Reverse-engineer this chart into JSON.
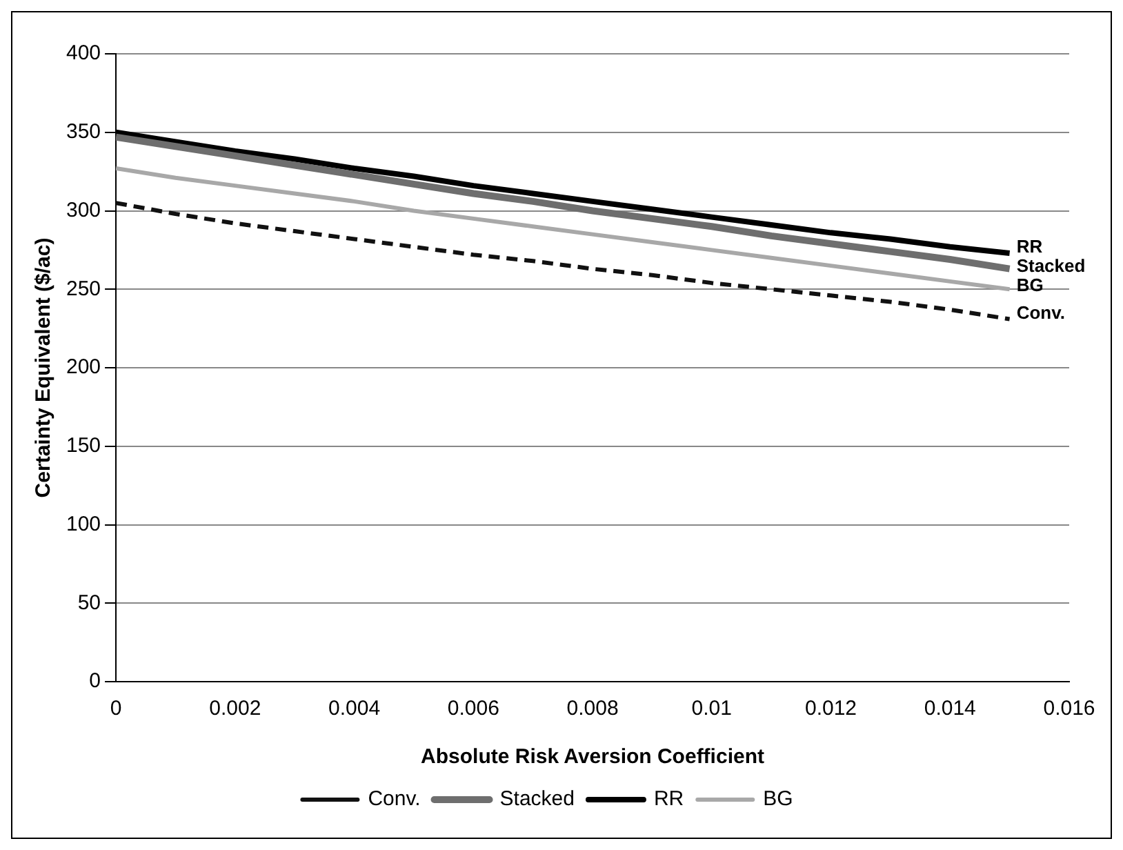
{
  "chart_data": {
    "type": "line",
    "xlabel": "Absolute Risk Aversion Coefficient",
    "ylabel": "Certainty Equivalent ($/ac)",
    "x": [
      0,
      0.001,
      0.002,
      0.003,
      0.004,
      0.005,
      0.006,
      0.007,
      0.008,
      0.009,
      0.01,
      0.011,
      0.012,
      0.013,
      0.014,
      0.015
    ],
    "series": [
      {
        "name": "Conv.",
        "color": "#111111",
        "line_style": "dashed",
        "values": [
          305,
          298,
          292,
          287,
          282,
          277,
          272,
          268,
          263,
          259,
          254,
          250,
          246,
          242,
          237,
          231
        ]
      },
      {
        "name": "Stacked",
        "color": "#6e6e6e",
        "values": [
          347,
          341,
          335,
          329,
          323,
          317,
          311,
          306,
          300,
          295,
          290,
          284,
          279,
          274,
          269,
          263
        ]
      },
      {
        "name": "RR",
        "color": "#000000",
        "values": [
          350,
          344,
          338,
          333,
          327,
          322,
          316,
          311,
          306,
          301,
          296,
          291,
          286,
          282,
          277,
          273
        ]
      },
      {
        "name": "BG",
        "color": "#a8a8a8",
        "values": [
          327,
          321,
          316,
          311,
          306,
          300,
          295,
          290,
          285,
          280,
          275,
          270,
          265,
          260,
          255,
          250
        ]
      }
    ],
    "xlim": [
      0,
      0.016
    ],
    "xticks": [
      0,
      0.002,
      0.004,
      0.006,
      0.008,
      0.01,
      0.012,
      0.014,
      0.016
    ],
    "ylim": [
      0,
      400
    ],
    "yticks": [
      0,
      50,
      100,
      150,
      200,
      250,
      300,
      350,
      400
    ],
    "grid": "y",
    "legend": "bottom",
    "marker": "none",
    "line_style": "solid"
  }
}
